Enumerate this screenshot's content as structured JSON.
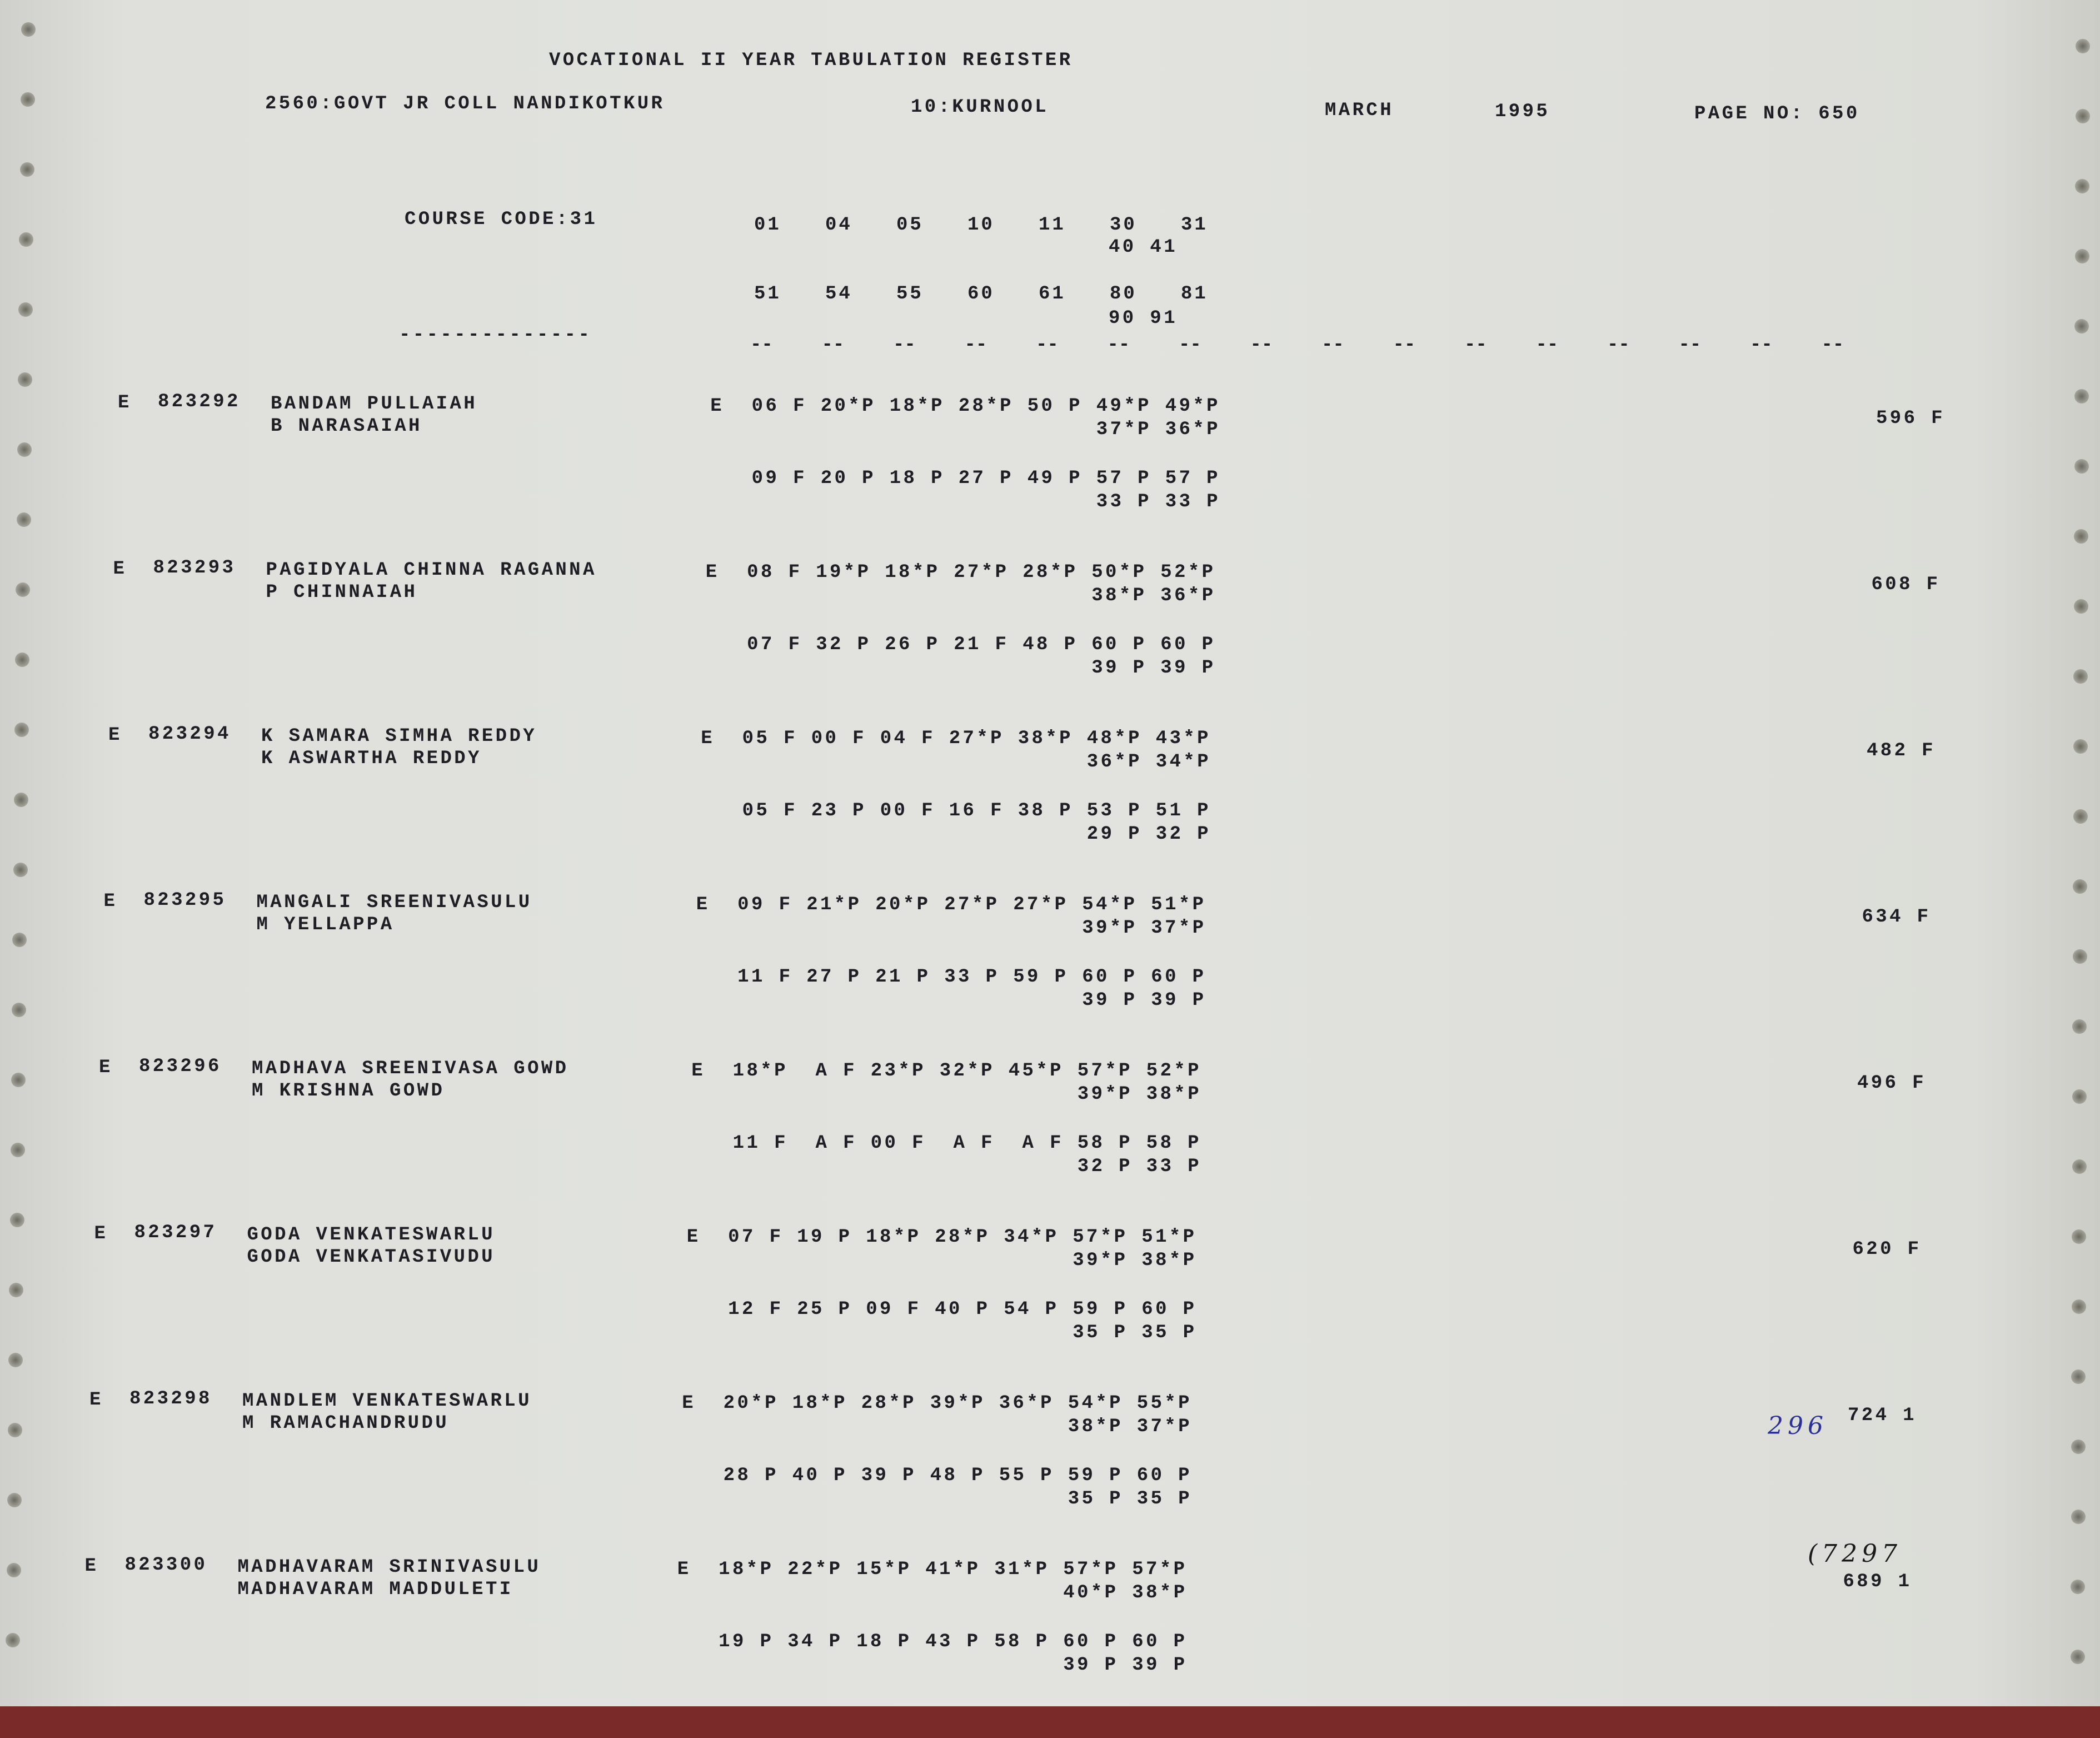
{
  "header": {
    "title": "VOCATIONAL II YEAR TABULATION REGISTER",
    "college": "2560:GOVT JR COLL NANDIKOTKUR",
    "district": "10:KURNOOL",
    "month": "MARCH",
    "year": "1995",
    "page": "PAGE NO: 650"
  },
  "course": {
    "label": "COURSE CODE:31",
    "codes_row1": [
      "01",
      "04",
      "05",
      "10",
      "11",
      "30",
      "31"
    ],
    "codes_row1b": "40 41",
    "codes_row2": [
      "51",
      "54",
      "55",
      "60",
      "61",
      "80",
      "81"
    ],
    "codes_row2b": "90 91",
    "separator": "--------------",
    "dash_count": 16
  },
  "records": [
    {
      "flag": "E",
      "roll": "823292",
      "name": "BANDAM PULLAIAH",
      "father": "B NARASAIAH",
      "m1": "E  06 F 20*P 18*P 28*P 50 P 49*P 49*P",
      "m1b": "37*P 36*P",
      "m2": "09 F 20 P 18 P 27 P 49 P 57 P 57 P",
      "m2b": "33 P 33 P",
      "total": "596 F"
    },
    {
      "flag": "E",
      "roll": "823293",
      "name": "PAGIDYALA CHINNA RAGANNA",
      "father": "P CHINNAIAH",
      "m1": "E  08 F 19*P 18*P 27*P 28*P 50*P 52*P",
      "m1b": "38*P 36*P",
      "m2": "07 F 32 P 26 P 21 F 48 P 60 P 60 P",
      "m2b": "39 P 39 P",
      "total": "608 F"
    },
    {
      "flag": "E",
      "roll": "823294",
      "name": "K SAMARA SIMHA REDDY",
      "father": "K ASWARTHA REDDY",
      "m1": "E  05 F 00 F 04 F 27*P 38*P 48*P 43*P",
      "m1b": "36*P 34*P",
      "m2": "05 F 23 P 00 F 16 F 38 P 53 P 51 P",
      "m2b": "29 P 32 P",
      "total": "482 F"
    },
    {
      "flag": "E",
      "roll": "823295",
      "name": "MANGALI SREENIVASULU",
      "father": "M YELLAPPA",
      "m1": "E  09 F 21*P 20*P 27*P 27*P 54*P 51*P",
      "m1b": "39*P 37*P",
      "m2": "11 F 27 P 21 P 33 P 59 P 60 P 60 P",
      "m2b": "39 P 39 P",
      "total": "634 F"
    },
    {
      "flag": "E",
      "roll": "823296",
      "name": "MADHAVA SREENIVASA GOWD",
      "father": "M KRISHNA GOWD",
      "m1": "E  18*P  A F 23*P 32*P 45*P 57*P 52*P",
      "m1b": "39*P 38*P",
      "m2": "11 F  A F 00 F  A F  A F 58 P 58 P",
      "m2b": "32 P 33 P",
      "total": "496 F"
    },
    {
      "flag": "E",
      "roll": "823297",
      "name": "GODA VENKATESWARLU",
      "father": "GODA VENKATASIVUDU",
      "m1": "E  07 F 19 P 18*P 28*P 34*P 57*P 51*P",
      "m1b": "39*P 38*P",
      "m2": "12 F 25 P 09 F 40 P 54 P 59 P 60 P",
      "m2b": "35 P 35 P",
      "total": "620 F"
    },
    {
      "flag": "E",
      "roll": "823298",
      "name": "MANDLEM VENKATESWARLU",
      "father": "M RAMACHANDRUDU",
      "m1": "E  20*P 18*P 28*P 39*P 36*P 54*P 55*P",
      "m1b": "38*P 37*P",
      "m2": "28 P 40 P 39 P 48 P 55 P 59 P 60 P",
      "m2b": "35 P 35 P",
      "total": "724 1"
    },
    {
      "flag": "E",
      "roll": "823300",
      "name": "MADHAVARAM SRINIVASULU",
      "father": "MADHAVARAM MADDULETI",
      "m1": "E  18*P 22*P 15*P 41*P 31*P 57*P 57*P",
      "m1b": "40*P 38*P",
      "m2": "19 P 34 P 18 P 43 P 58 P 60 P 60 P",
      "m2b": "39 P 39 P",
      "total": "689 1"
    }
  ],
  "annotations": {
    "note_1": "296",
    "note_1_color": "#2a2f9a",
    "note_2": "(7297",
    "note_2_color": "#1a1a1a"
  }
}
